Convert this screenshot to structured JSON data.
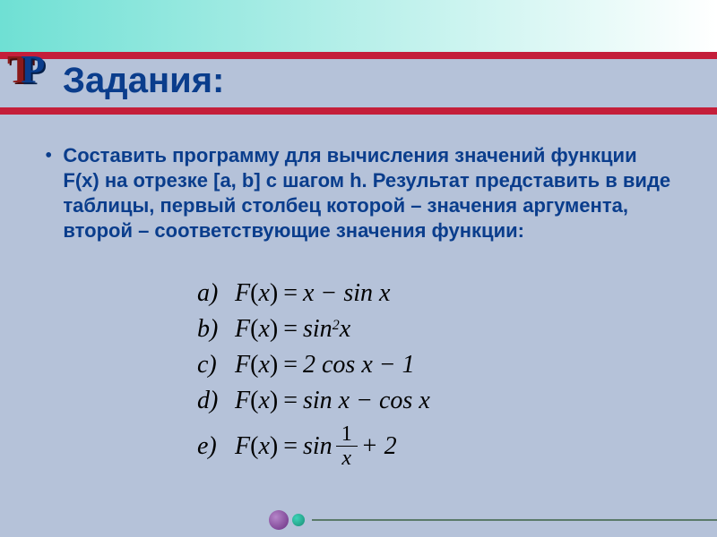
{
  "colors": {
    "background": "#b5c2d9",
    "gradient_start": "#6fe0d4",
    "gradient_end": "#ffffff",
    "red_line": "#c41e3a",
    "title_color": "#0a3d8c",
    "text_color": "#0a3d8c",
    "formula_color": "#000000",
    "dot_purple": "#6a2d82",
    "dot_teal": "#1a8c74"
  },
  "logo": {
    "t": "Т",
    "p": "Р"
  },
  "title": "Задания:",
  "task": {
    "bullet": "•",
    "text": "Составить программу для вычисления значений функции F(x) на отрезке [a, b] с шагом h. Результат представить в виде таблицы, первый столбец которой – значения аргумента, второй – соответствующие значения функции:"
  },
  "formulas": [
    {
      "label": "a)",
      "lhs_func": "F",
      "lhs_arg": "x",
      "rhs": "x − sin x",
      "type": "plain"
    },
    {
      "label": "b)",
      "lhs_func": "F",
      "lhs_arg": "x",
      "rhs_base": "sin",
      "rhs_sup": "2",
      "rhs_tail": " x",
      "type": "sup"
    },
    {
      "label": "c)",
      "lhs_func": "F",
      "lhs_arg": "x",
      "rhs": "2 cos x − 1",
      "type": "plain"
    },
    {
      "label": "d)",
      "lhs_func": "F",
      "lhs_arg": "x",
      "rhs": "sin x − cos x",
      "type": "plain"
    },
    {
      "label": "e)",
      "lhs_func": "F",
      "lhs_arg": "x",
      "rhs_pre": "sin ",
      "frac_num": "1",
      "frac_den": "x",
      "rhs_post": " + 2",
      "type": "frac"
    }
  ],
  "typography": {
    "title_fontsize": 40,
    "body_fontsize": 22,
    "formula_fontsize": 28
  }
}
